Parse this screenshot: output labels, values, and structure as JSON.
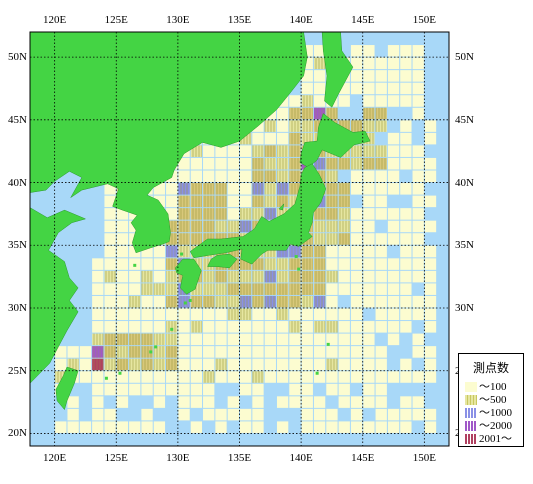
{
  "map": {
    "lon_range": [
      118,
      152
    ],
    "lat_range": [
      19,
      52
    ],
    "lon_ticks": [
      "120E",
      "125E",
      "130E",
      "135E",
      "140E",
      "145E",
      "150E"
    ],
    "lat_ticks": [
      "50N",
      "45N",
      "40N",
      "35N",
      "30N",
      "25N",
      "20N"
    ],
    "colors": {
      "sea": "#a8d8f8",
      "land": "#44d444",
      "grid_line": "#000000",
      "cell_pale": "#fcfcd0",
      "cell_yellow": "#e6e6a0",
      "cell_olive": "#d8c87a",
      "cell_blue": "#8a90e6",
      "cell_purple": "#a058c8",
      "cell_red": "#b04060"
    }
  },
  "legend": {
    "title": "測点数",
    "items": [
      {
        "label": "～100",
        "color": "#fcfcd0"
      },
      {
        "label": "～500",
        "color": "#e6e6a0"
      },
      {
        "label": "～1000",
        "color": "#8a90e6"
      },
      {
        "label": "～2000",
        "color": "#a058c8"
      },
      {
        "label": "2001～",
        "color": "#b04060"
      }
    ]
  }
}
